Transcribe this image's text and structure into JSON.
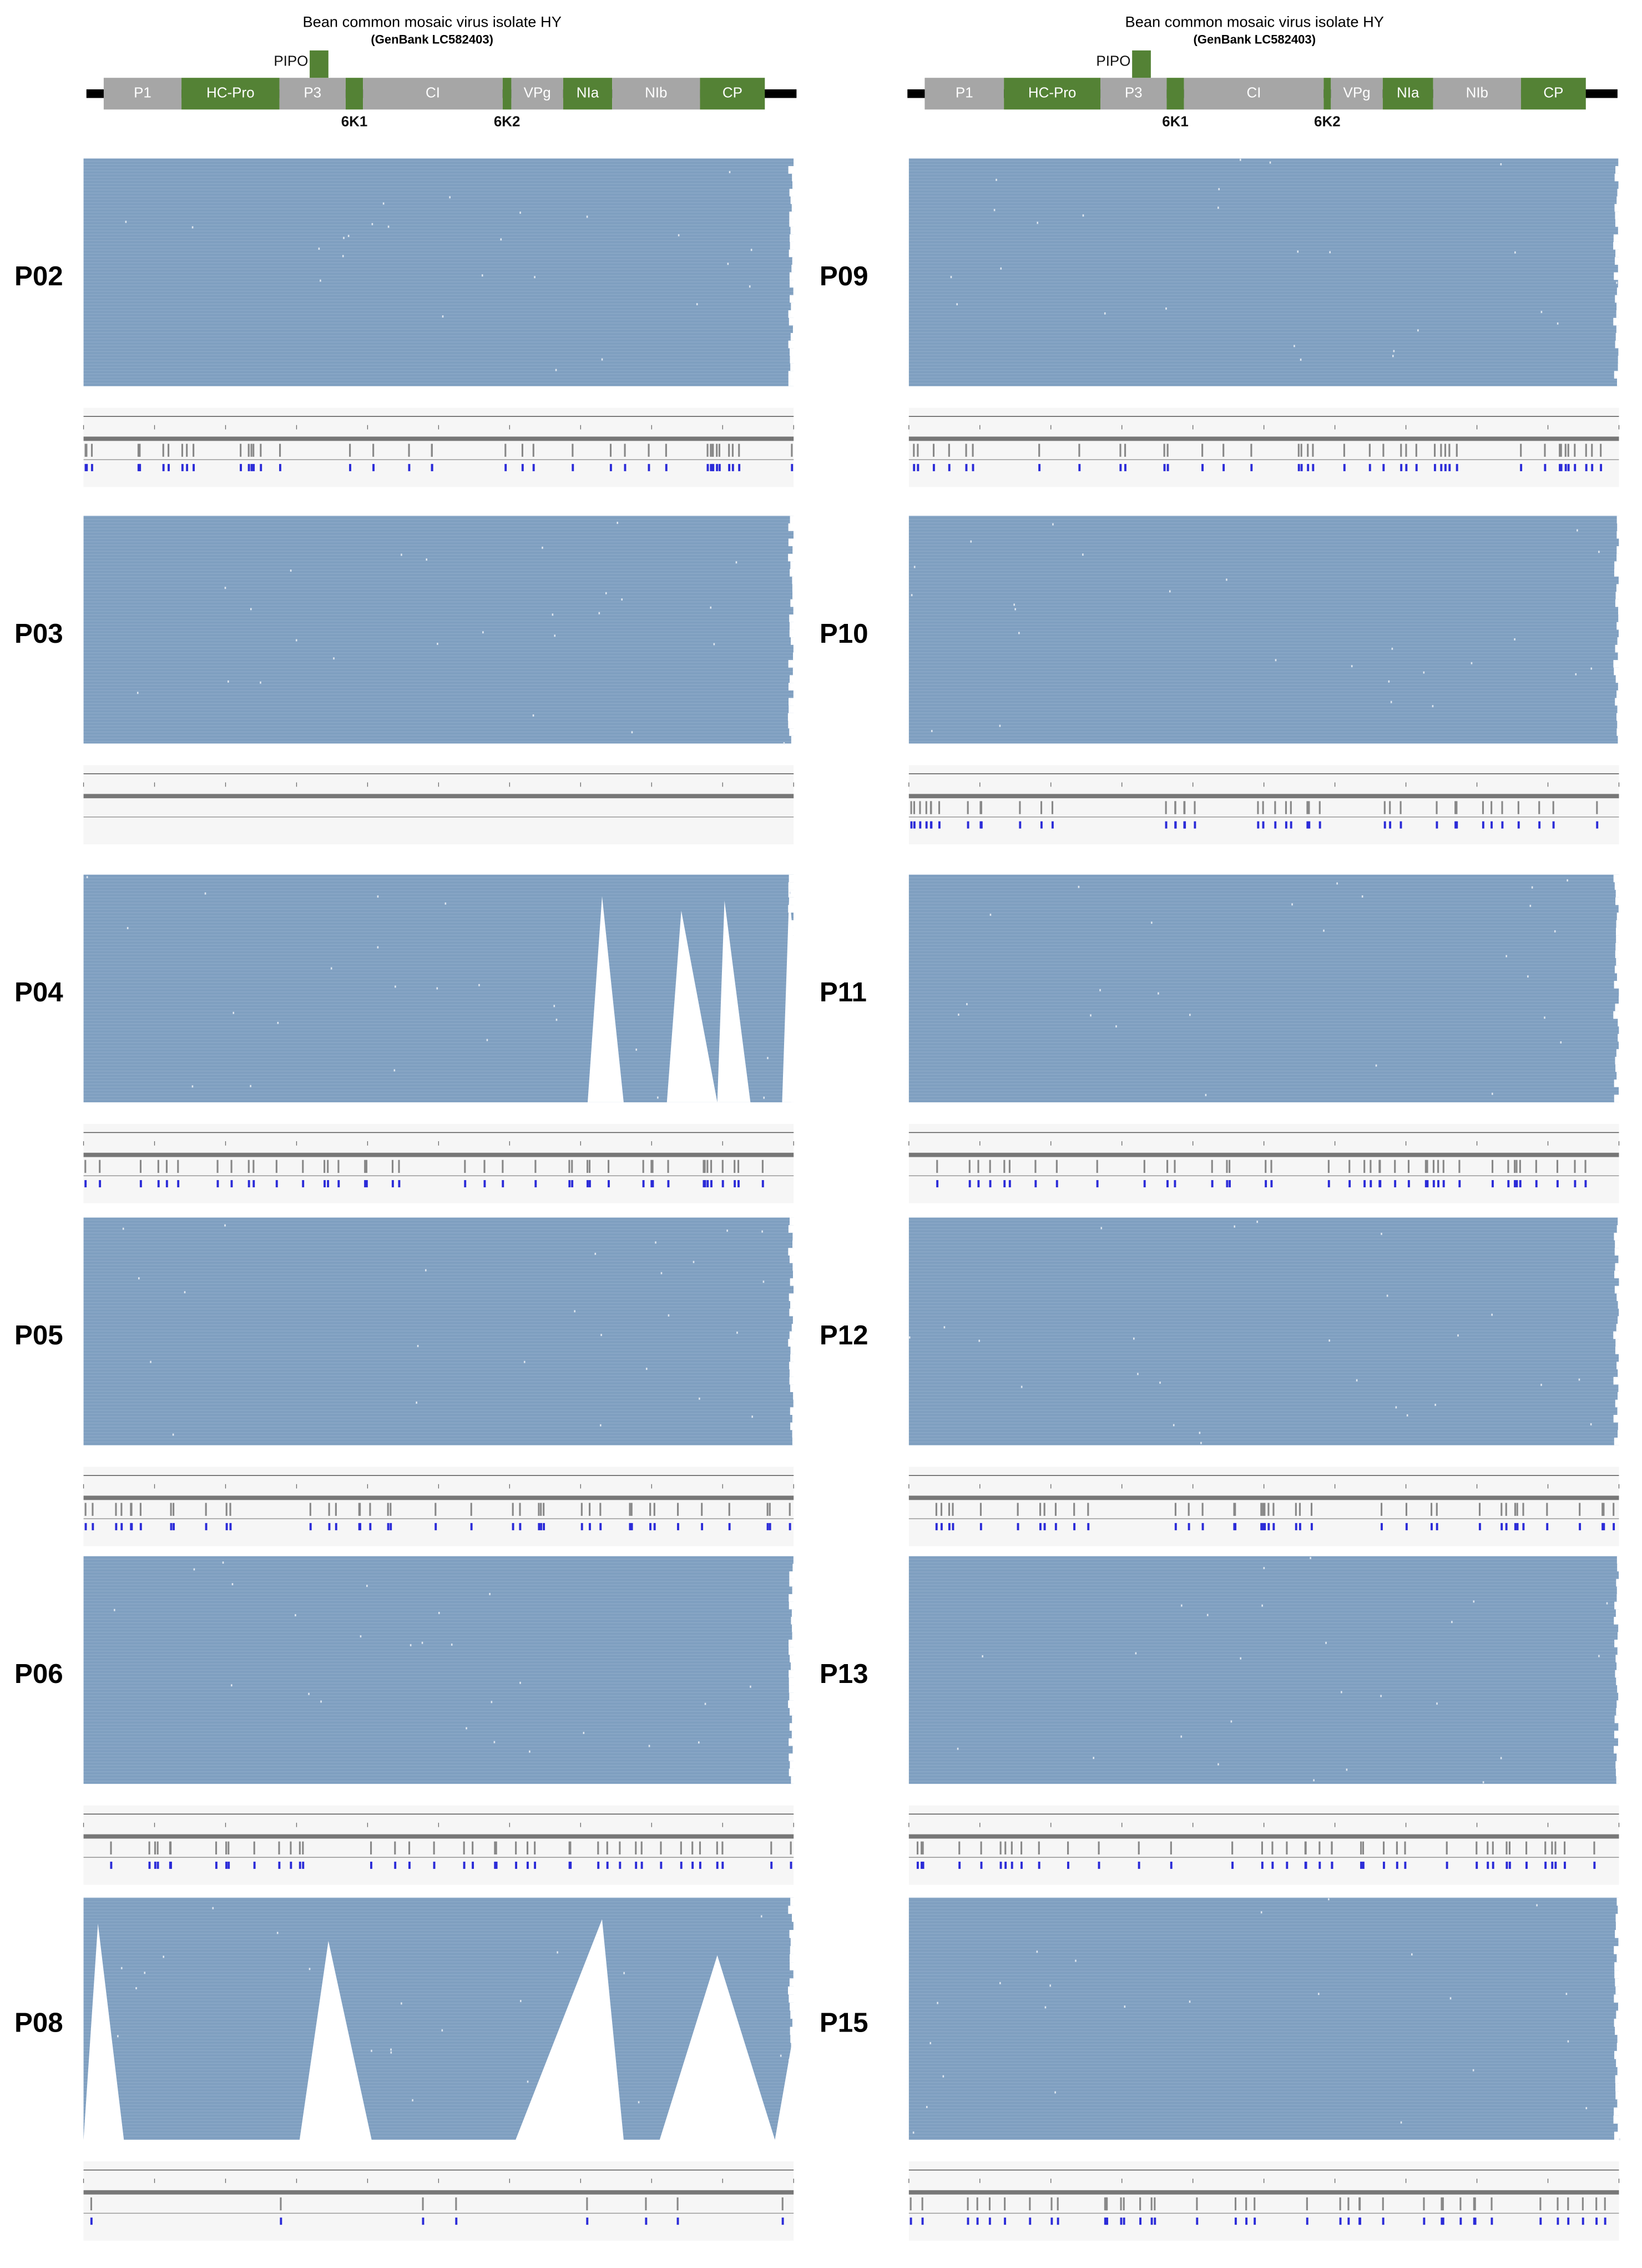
{
  "genome_maps": [
    {
      "title": "Bean common mosaic virus isolate HY",
      "accession": "(GenBank LC582403)",
      "genes": [
        "P1",
        "HC-Pro",
        "P3",
        "CI",
        "VPg",
        "NIa",
        "NIb",
        "CP"
      ],
      "small_genes": [
        "PIPO",
        "6K1",
        "6K2"
      ]
    },
    {
      "title": "Bean common mosaic virus isolate HY",
      "accession": "(GenBank LC582403)",
      "genes": [
        "P1",
        "HC-Pro",
        "P3",
        "CI",
        "VPg",
        "NIa",
        "NIb",
        "CP"
      ],
      "small_genes": [
        "PIPO",
        "6K1",
        "6K2"
      ]
    }
  ],
  "panels": [
    {
      "label": "P02"
    },
    {
      "label": "P03"
    },
    {
      "label": "P04"
    },
    {
      "label": "P05"
    },
    {
      "label": "P06"
    },
    {
      "label": "P08"
    },
    {
      "label": "P09"
    },
    {
      "label": "P10"
    },
    {
      "label": "P11"
    },
    {
      "label": "P12"
    },
    {
      "label": "P13"
    },
    {
      "label": "P15"
    }
  ]
}
